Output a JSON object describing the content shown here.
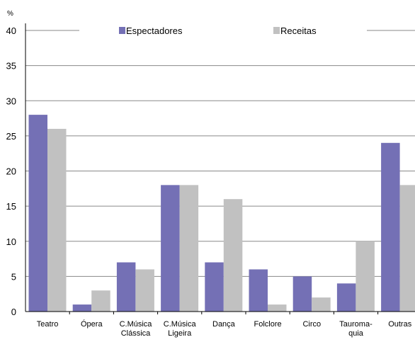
{
  "chart_data": {
    "type": "bar",
    "ylabel": "%",
    "ylim": [
      0,
      40
    ],
    "yticks": [
      "0",
      "5",
      "10",
      "15",
      "20",
      "25",
      "30",
      "35",
      "40"
    ],
    "categories": [
      [
        "Teatro"
      ],
      [
        "Ópera"
      ],
      [
        "C.Música",
        "Clássica"
      ],
      [
        "C.Música",
        "Ligeira"
      ],
      [
        "Dança"
      ],
      [
        "Folclore"
      ],
      [
        "Circo"
      ],
      [
        "Tauroma-",
        "quia"
      ],
      [
        "Outras"
      ]
    ],
    "series": [
      {
        "name": "Espectadores",
        "color": "#7470b5",
        "values": [
          28,
          1,
          7,
          18,
          7,
          6,
          5,
          4,
          24
        ]
      },
      {
        "name": "Receitas",
        "color": "#c1c1c1",
        "values": [
          26,
          3,
          6,
          18,
          16,
          1,
          2,
          10,
          18
        ]
      }
    ],
    "grid": true,
    "legend_position": "top"
  }
}
